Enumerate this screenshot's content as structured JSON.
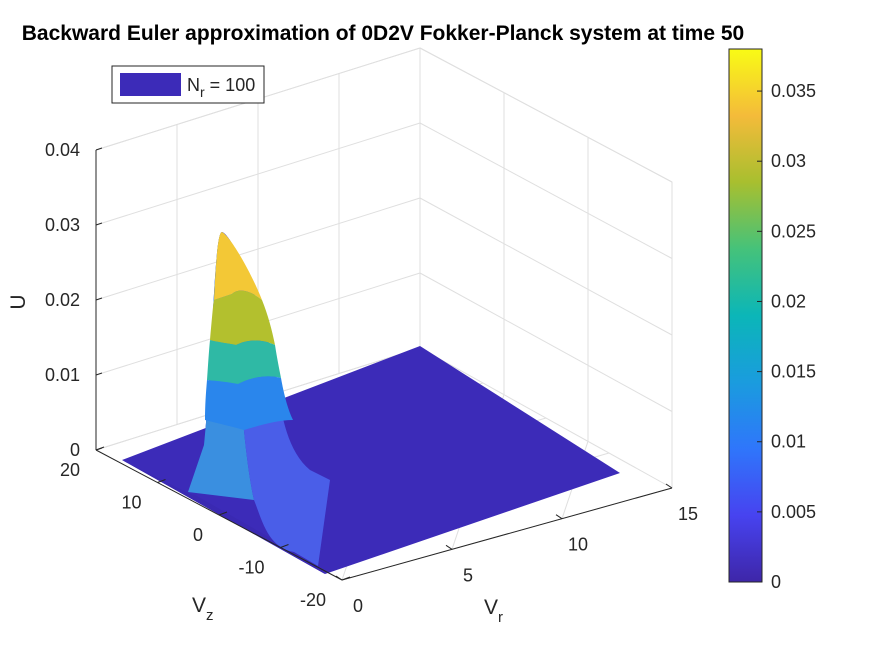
{
  "chart_data": {
    "type": "surface",
    "title": "Backward Euler approximation of 0D2V Fokker-Planck system at time 50",
    "xlabel": {
      "main": "V",
      "sub": "r"
    },
    "ylabel": {
      "main": "V",
      "sub": "z"
    },
    "zlabel": "U",
    "xlim": [
      0,
      15
    ],
    "ylim": [
      -20,
      20
    ],
    "zlim": [
      0,
      0.04
    ],
    "xticks": [
      "0",
      "5",
      "10",
      "15"
    ],
    "yticks": [
      "-20",
      "-10",
      "0",
      "10",
      "20"
    ],
    "zticks": [
      "0",
      "0.01",
      "0.02",
      "0.03",
      "0.04"
    ],
    "grid": true,
    "legend": {
      "position": "top-left",
      "entry_main": "N",
      "entry_sub": "r",
      "entry_rest": " = 100"
    },
    "colorbar": {
      "colormap": "parula",
      "limits": [
        0,
        0.038
      ],
      "ticks": [
        "0",
        "0.005",
        "0.01",
        "0.015",
        "0.02",
        "0.025",
        "0.03",
        "0.035"
      ]
    },
    "surface": {
      "peak_value": 0.029,
      "peak_at": {
        "vr": 0,
        "vz": 0
      },
      "vr_range": [
        0,
        12
      ],
      "vz_range": [
        -20,
        20
      ],
      "floor_value": 0
    }
  }
}
